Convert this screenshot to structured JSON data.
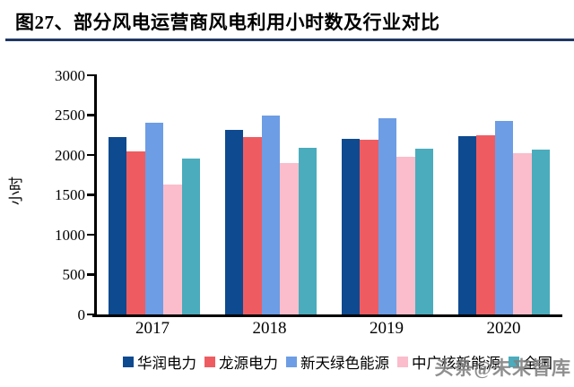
{
  "title": "图27、部分风电运营商风电利用小时数及行业对比",
  "watermark": "头条@未来智库",
  "colors": {
    "title_rule": "#1F3864",
    "axis": "#000000",
    "watermark": "#808080"
  },
  "chart_data": {
    "type": "bar",
    "categories": [
      "2017",
      "2018",
      "2019",
      "2020"
    ],
    "series": [
      {
        "name": "华润电力",
        "color": "#0E4A8F",
        "values": [
          2230,
          2320,
          2200,
          2240
        ]
      },
      {
        "name": "龙源电力",
        "color": "#EE5C62",
        "values": [
          2050,
          2220,
          2190,
          2245
        ]
      },
      {
        "name": "新天绿色能源",
        "color": "#6D9DE4",
        "values": [
          2400,
          2495,
          2465,
          2430
        ]
      },
      {
        "name": "中广核新能源",
        "color": "#FBBDCB",
        "values": [
          1625,
          1900,
          1980,
          2020
        ]
      },
      {
        "name": "全国",
        "color": "#4AACBC",
        "values": [
          1950,
          2095,
          2080,
          2065
        ]
      }
    ],
    "title": "部分风电运营商风电利用小时数及行业对比",
    "xlabel": "",
    "ylabel": "小时",
    "ylim": [
      0,
      3000
    ],
    "yticks": [
      0,
      500,
      1000,
      1500,
      2000,
      2500,
      3000
    ],
    "grid": false,
    "legend_position": "bottom"
  }
}
